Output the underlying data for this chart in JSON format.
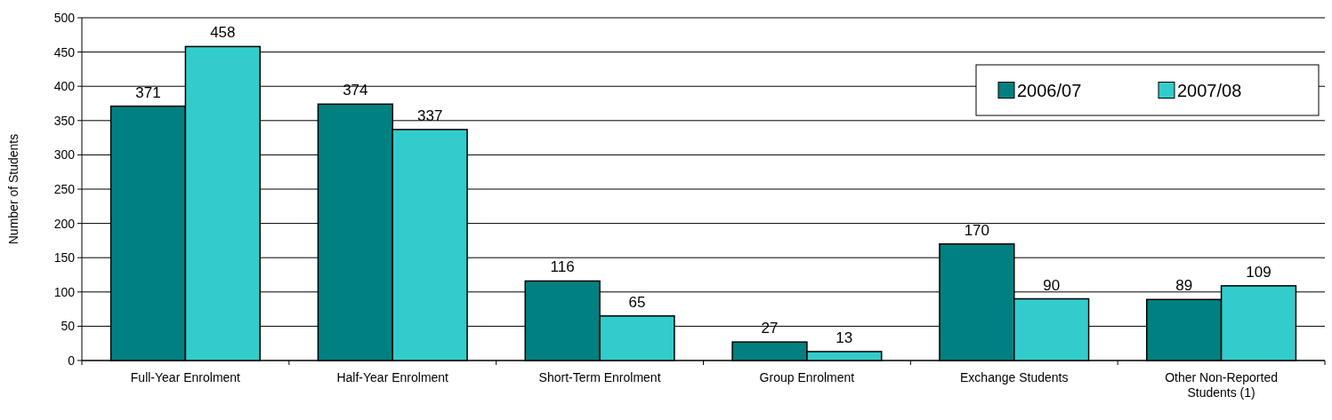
{
  "chart_data": {
    "type": "bar",
    "ylabel": "Number of Students",
    "categories": [
      "Full-Year Enrolment",
      "Half-Year Enrolment",
      "Short-Term Enrolment",
      "Group Enrolment",
      "Exchange Students",
      "Other Non-Reported Students (1)"
    ],
    "series": [
      {
        "name": "2006/07",
        "color": "#008080",
        "values": [
          371,
          374,
          116,
          27,
          170,
          89
        ]
      },
      {
        "name": "2007/08",
        "color": "#33cccc",
        "values": [
          458,
          337,
          65,
          13,
          90,
          109
        ]
      }
    ],
    "ylim": [
      0,
      500
    ],
    "yticks": [
      0,
      50,
      100,
      150,
      200,
      250,
      300,
      350,
      400,
      450,
      500
    ],
    "grid": "y",
    "legend": "top right",
    "data_labels": true
  }
}
